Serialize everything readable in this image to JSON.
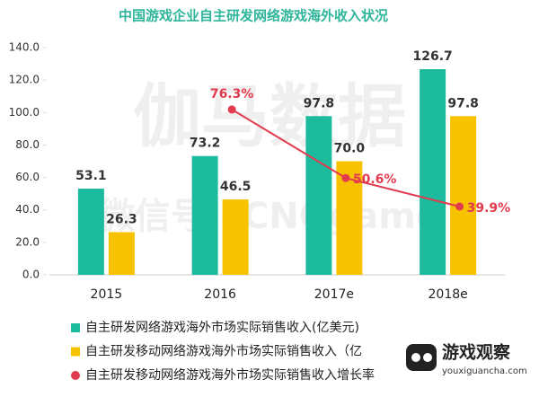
{
  "chart_data": {
    "type": "bar",
    "title": "中国游戏企业自主研发网络游戏海外收入状况",
    "categories": [
      "2015",
      "2016",
      "2017e",
      "2018e"
    ],
    "series": [
      {
        "name": "自主研发网络游戏海外市场实际销售收入(亿美元)",
        "color": "#1dbb9e",
        "type": "bar",
        "values": [
          53.1,
          73.2,
          97.8,
          126.7
        ],
        "value_labels": [
          "53.1",
          "73.2",
          "97.8",
          "126.7"
        ]
      },
      {
        "name": "自主研发移动网络游戏海外市场实际销售收入（亿",
        "color": "#f7c300",
        "type": "bar",
        "values": [
          26.3,
          46.5,
          70.0,
          97.8
        ],
        "value_labels": [
          "26.3",
          "46.5",
          "70.0",
          "97.8"
        ]
      },
      {
        "name": "自主研发移动网络游戏海外市场实际销售收入增长率",
        "color": "#e23b4e",
        "type": "line",
        "axis": "y2",
        "values": [
          null,
          76.3,
          50.6,
          39.9
        ],
        "value_labels": [
          null,
          "76.3%",
          "50.6%",
          "39.9%"
        ]
      }
    ],
    "ylim": [
      0,
      140
    ],
    "yticks": [
      {
        "value": 0,
        "label": "0.0"
      },
      {
        "value": 20,
        "label": "20.0"
      },
      {
        "value": 40,
        "label": "40.0"
      },
      {
        "value": 60,
        "label": "60.0"
      },
      {
        "value": 80,
        "label": "80.0"
      },
      {
        "value": 100,
        "label": "100.0"
      },
      {
        "value": 120,
        "label": "120.0"
      },
      {
        "value": 140,
        "label": "140.0"
      }
    ],
    "y2lim": [
      14.3,
      99.5
    ],
    "watermark": [
      "伽马数据",
      "微信号：CNGgame"
    ],
    "logo": {
      "name": "游戏观察",
      "url": "youxiguancha.com"
    }
  }
}
